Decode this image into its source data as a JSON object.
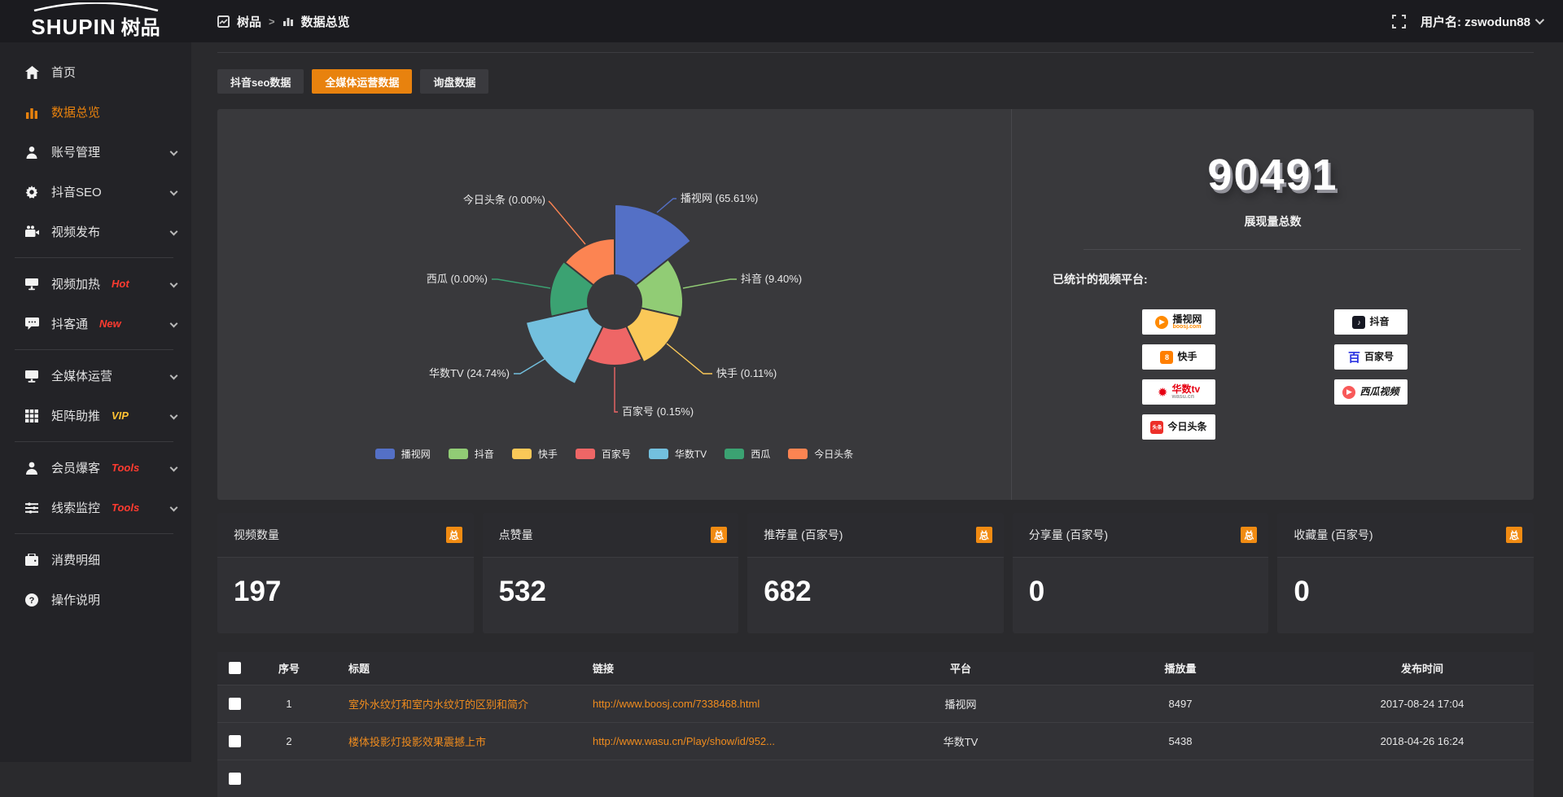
{
  "topbar": {
    "logo_en": "SHUPIN",
    "logo_cn": "树品",
    "breadcrumb": {
      "root": "树品",
      "separator": ">",
      "current": "数据总览"
    },
    "user_prefix": "用户名: ",
    "user_name": "zswodun88"
  },
  "sidebar": {
    "items": [
      {
        "label": "首页",
        "icon": "home-icon"
      },
      {
        "label": "数据总览",
        "icon": "chart-bars-icon",
        "active": true
      },
      {
        "label": "账号管理",
        "icon": "user-icon",
        "chevron": true
      },
      {
        "label": "抖音SEO",
        "icon": "gear-icon",
        "chevron": true
      },
      {
        "label": "视频发布",
        "icon": "video-publish-icon",
        "chevron": true
      },
      {
        "divider": true
      },
      {
        "label": "视频加热",
        "icon": "monitor-heat-icon",
        "badge": "Hot",
        "badge_color": "#ff3b30",
        "chevron": true
      },
      {
        "label": "抖客通",
        "icon": "chat-bubble-icon",
        "badge": "New",
        "badge_color": "#ff3b30",
        "chevron": true
      },
      {
        "divider": true
      },
      {
        "label": "全媒体运营",
        "icon": "monitor-icon",
        "chevron": true
      },
      {
        "label": "矩阵助推",
        "icon": "grid-icon",
        "badge": "VIP",
        "badge_color": "#ffc233",
        "chevron": true
      },
      {
        "divider": true
      },
      {
        "label": "会员爆客",
        "icon": "member-icon",
        "badge": "Tools",
        "badge_color": "#ff3b30",
        "chevron": true
      },
      {
        "label": "线索监控",
        "icon": "sliders-icon",
        "badge": "Tools",
        "badge_color": "#ff3b30",
        "chevron": true
      },
      {
        "divider": true
      },
      {
        "label": "消费明细",
        "icon": "wallet-icon"
      },
      {
        "label": "操作说明",
        "icon": "question-icon"
      }
    ]
  },
  "tabs": [
    {
      "label": "抖音seo数据",
      "active": false
    },
    {
      "label": "全媒体运营数据",
      "active": true
    },
    {
      "label": "询盘数据",
      "active": false
    }
  ],
  "chart_data": {
    "type": "pie",
    "variant": "nightingale-rose",
    "categories": [
      "播视网",
      "抖音",
      "快手",
      "百家号",
      "华数TV",
      "西瓜",
      "今日头条"
    ],
    "values": [
      65.61,
      9.4,
      0.11,
      0.15,
      24.74,
      0.0,
      0.0
    ],
    "unit": "%",
    "labels": [
      "播视网 (65.61%)",
      "抖音 (9.40%)",
      "快手 (0.11%)",
      "百家号 (0.15%)",
      "华数TV (24.74%)",
      "西瓜 (0.00%)",
      "今日头条 (0.00%)"
    ],
    "colors": [
      "#5470c6",
      "#91cc75",
      "#fac858",
      "#ee6666",
      "#73c0de",
      "#3ba272",
      "#fc8452"
    ],
    "legend": [
      "播视网",
      "抖音",
      "快手",
      "百家号",
      "华数TV",
      "西瓜",
      "今日头条"
    ],
    "legend_position": "bottom",
    "title": ""
  },
  "summary": {
    "total_value": "90491",
    "total_label": "展现量总数",
    "platforms_label": "已统计的视频平台:",
    "platform_badges": [
      {
        "name": "播视网",
        "sub": "boosj.com",
        "sub_color": "#ff8a00",
        "icon": "boosj-play-icon",
        "icon_shape": "circle",
        "icon_bg": "#ff8a00",
        "glyph": "▶",
        "name_color": "#151515",
        "col": 0
      },
      {
        "name": "快手",
        "sub": "",
        "icon": "kuaishou-icon",
        "icon_shape": "square",
        "icon_bg": "#ff7f00",
        "glyph": "8",
        "name_color": "#151515",
        "col": 0
      },
      {
        "name": "华数tv",
        "sub": "wasu.cn",
        "sub_color": "#999999",
        "icon": "wasu-star-icon",
        "icon_shape": "glyph",
        "icon_bg": "",
        "glyph": "✹",
        "glyph_color": "#e60012",
        "name_color": "#e60012",
        "col": 0
      },
      {
        "name": "今日头条",
        "sub": "",
        "icon": "toutiao-icon",
        "icon_shape": "square",
        "icon_bg": "#ed2f29",
        "glyph": "头条",
        "name_color": "#151515",
        "col": 0
      },
      {
        "name": "抖音",
        "sub": "",
        "icon": "douyin-icon",
        "icon_shape": "square",
        "icon_bg": "#161823",
        "glyph": "♪",
        "name_color": "#151515",
        "col": 1
      },
      {
        "name": "百家号",
        "sub": "",
        "icon": "baijiahao-icon",
        "icon_shape": "glyph",
        "icon_bg": "",
        "glyph": "百",
        "glyph_color": "#2932e1",
        "name_color": "#151515",
        "col": 1
      },
      {
        "name": "西瓜视频",
        "sub": "",
        "icon": "xigua-play-icon",
        "icon_shape": "circle",
        "icon_bg": "#f85959",
        "glyph": "▶",
        "name_color": "#151515",
        "italic": true,
        "col": 1
      }
    ]
  },
  "stat_cards": [
    {
      "title": "视频数量",
      "badge": "总",
      "value": "197"
    },
    {
      "title": "点赞量",
      "badge": "总",
      "value": "532"
    },
    {
      "title": "推荐量 (百家号)",
      "badge": "总",
      "value": "682"
    },
    {
      "title": "分享量 (百家号)",
      "badge": "总",
      "value": "0"
    },
    {
      "title": "收藏量 (百家号)",
      "badge": "总",
      "value": "0"
    }
  ],
  "table": {
    "headers": [
      "序号",
      "标题",
      "链接",
      "平台",
      "播放量",
      "发布时间"
    ],
    "rows": [
      {
        "no": "1",
        "title": "室外水纹灯和室内水纹灯的区别和简介",
        "link": "http://www.boosj.com/7338468.html",
        "platform": "播视网",
        "plays": "8497",
        "time": "2017-08-24 17:04"
      },
      {
        "no": "2",
        "title": "楼体投影灯投影效果震撼上市",
        "link": "http://www.wasu.cn/Play/show/id/952...",
        "platform": "华数TV",
        "plays": "5438",
        "time": "2018-04-26 16:24"
      }
    ]
  }
}
